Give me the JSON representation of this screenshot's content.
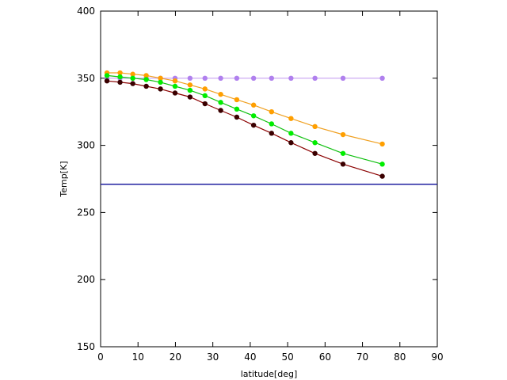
{
  "chart_data": {
    "type": "line",
    "xlabel": "latitude[deg]",
    "ylabel": "Temp[K]",
    "xlim": [
      0,
      90
    ],
    "ylim": [
      150,
      400
    ],
    "xticks": [
      0,
      10,
      20,
      30,
      40,
      50,
      60,
      70,
      80,
      90
    ],
    "yticks": [
      150,
      200,
      250,
      300,
      350,
      400
    ],
    "grid": false,
    "hlines": [
      {
        "y": 271,
        "color": "#1f1f9f"
      }
    ],
    "series": [
      {
        "color": "#c8a0f0",
        "marker_color": "#b080ee",
        "x": [
          1.7,
          5.2,
          8.6,
          12.2,
          16.0,
          19.9,
          23.9,
          27.9,
          32.1,
          36.4,
          40.9,
          45.7,
          50.9,
          57.3,
          64.8,
          75.3
        ],
        "y": [
          350,
          350,
          350,
          350,
          350,
          350,
          350,
          350,
          350,
          350,
          350,
          350,
          350,
          350,
          350,
          350
        ]
      },
      {
        "color": "#f0a020",
        "marker_color": "#ff9f00",
        "x": [
          1.7,
          5.2,
          8.6,
          12.2,
          16.0,
          19.9,
          23.9,
          27.9,
          32.1,
          36.4,
          40.9,
          45.7,
          50.9,
          57.3,
          64.8,
          75.3
        ],
        "y": [
          354,
          354,
          353,
          352,
          350,
          348,
          345,
          342,
          338,
          334,
          330,
          325,
          320,
          314,
          308,
          301
        ]
      },
      {
        "color": "#10c010",
        "marker_color": "#00ee00",
        "x": [
          1.7,
          5.2,
          8.6,
          12.2,
          16.0,
          19.9,
          23.9,
          27.9,
          32.1,
          36.4,
          40.9,
          45.7,
          50.9,
          57.3,
          64.8,
          75.3
        ],
        "y": [
          352,
          351,
          350,
          349,
          347,
          344,
          341,
          337,
          332,
          327,
          322,
          316,
          309,
          302,
          294,
          286
        ]
      },
      {
        "color": "#8b0000",
        "marker_color": "#3a0000",
        "x": [
          1.7,
          5.2,
          8.6,
          12.2,
          16.0,
          19.9,
          23.9,
          27.9,
          32.1,
          36.4,
          40.9,
          45.7,
          50.9,
          57.3,
          64.8,
          75.3
        ],
        "y": [
          348,
          347,
          346,
          344,
          342,
          339,
          336,
          331,
          326,
          321,
          315,
          309,
          302,
          294,
          286,
          277
        ]
      }
    ]
  }
}
